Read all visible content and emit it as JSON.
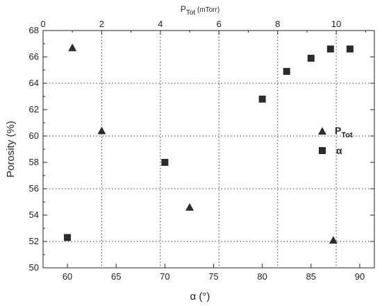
{
  "chart_data": {
    "type": "scatter",
    "xlabel_bottom": "α (°)",
    "xlabel_top_main": "P",
    "xlabel_top_sub": "Tot",
    "xlabel_top_unit": " (mTorr)",
    "ylabel": "Porosity (%)",
    "xlim_bottom": [
      57.5,
      91.5
    ],
    "xlim_top": [
      0,
      11.3
    ],
    "ylim": [
      50,
      68
    ],
    "x_ticks_bottom": [
      60,
      65,
      70,
      75,
      80,
      85,
      90
    ],
    "x_ticks_top": [
      0,
      2,
      4,
      6,
      8,
      10
    ],
    "y_ticks": [
      50,
      52,
      54,
      56,
      58,
      60,
      62,
      64,
      66,
      68
    ],
    "grid": "dotted",
    "legend_position": "right",
    "series": [
      {
        "name_main": "P",
        "name_sub": "Tot",
        "marker": "triangle",
        "axis": "top",
        "x": [
          1.0,
          2.0,
          5.0,
          9.9
        ],
        "y": [
          66.7,
          60.4,
          54.6,
          52.1
        ]
      },
      {
        "name_main": "α",
        "marker": "square",
        "axis": "bottom",
        "x": [
          60,
          70,
          80,
          82.5,
          85,
          87,
          89
        ],
        "y": [
          52.3,
          58.0,
          62.8,
          64.9,
          65.9,
          66.6,
          66.6
        ]
      }
    ],
    "colors": {
      "marker": "#2b2b2b",
      "grid": "#333333",
      "axis": "#222222"
    }
  }
}
